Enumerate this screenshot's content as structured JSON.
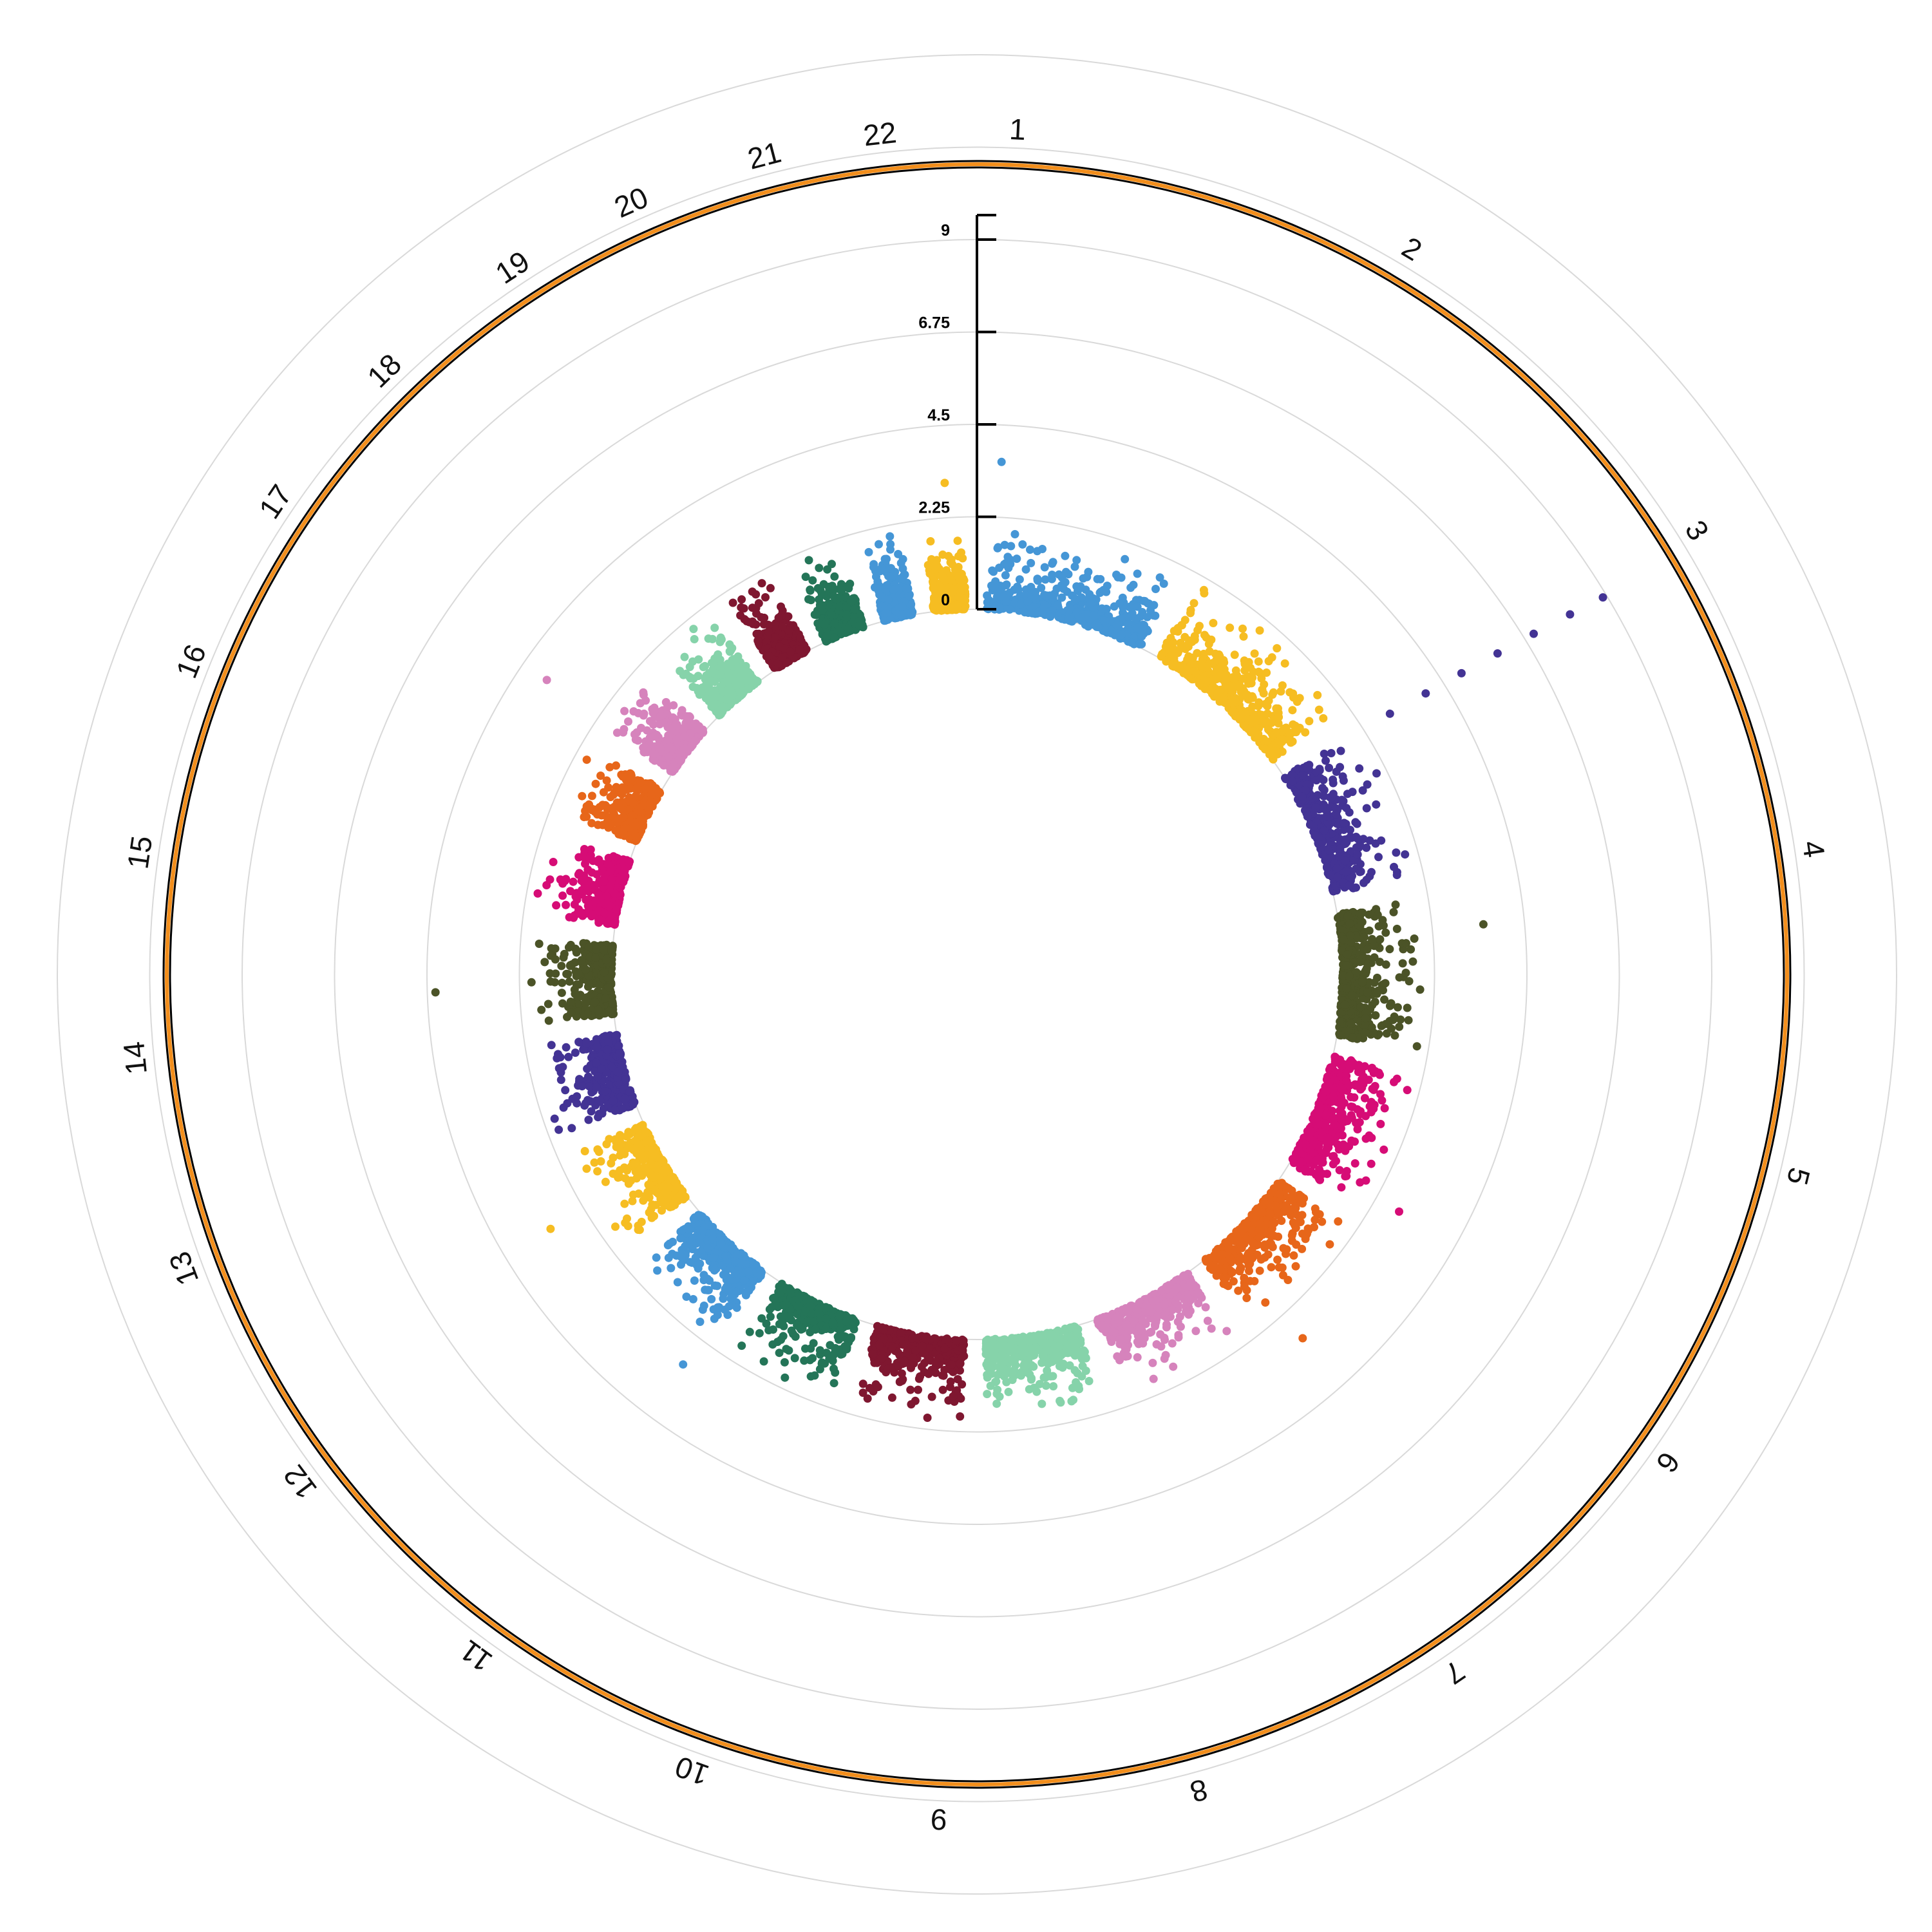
{
  "chart_data": {
    "type": "scatter",
    "layout": "circular-manhattan",
    "title": "",
    "ylabel": "",
    "ylim": [
      0,
      9
    ],
    "yticks": [
      "0",
      "2.25",
      "4.5",
      "6.75",
      "9"
    ],
    "grid": true,
    "chromosomes": [
      "1",
      "2",
      "3",
      "4",
      "5",
      "6",
      "7",
      "8",
      "9",
      "10",
      "11",
      "12",
      "13",
      "14",
      "15",
      "16",
      "17",
      "18",
      "19",
      "20",
      "21",
      "22"
    ],
    "chromosome_sizes": [
      248,
      242,
      198,
      190,
      181,
      171,
      159,
      145,
      138,
      133,
      135,
      133,
      114,
      107,
      102,
      90,
      83,
      80,
      59,
      64,
      47,
      51
    ],
    "colors": [
      "#4596d6",
      "#f6bd22",
      "#433394",
      "#4b5327",
      "#d60c76",
      "#e7661a",
      "#d683bc",
      "#86d3aa",
      "#7f1730",
      "#247558"
    ],
    "outer_ring_colors": {
      "band": "#f28e1c",
      "edge": "#000000"
    },
    "points_per_chromosome_approx": 450,
    "typical_max_value": 2.2,
    "notable_points": [
      {
        "chr": "3",
        "pos_frac": 0.02,
        "value": 3.0
      },
      {
        "chr": "3",
        "pos_frac": 0.03,
        "value": 4.0
      },
      {
        "chr": "3",
        "pos_frac": 0.04,
        "value": 5.0
      },
      {
        "chr": "3",
        "pos_frac": 0.05,
        "value": 6.0
      },
      {
        "chr": "3",
        "pos_frac": 0.06,
        "value": 7.0
      },
      {
        "chr": "3",
        "pos_frac": 0.07,
        "value": 8.0
      },
      {
        "chr": "3",
        "pos_frac": 0.08,
        "value": 8.9
      },
      {
        "chr": "4",
        "pos_frac": 0.2,
        "value": 3.5
      },
      {
        "chr": "5",
        "pos_frac": 0.9,
        "value": 2.9
      },
      {
        "chr": "6",
        "pos_frac": 0.8,
        "value": 3.0
      },
      {
        "chr": "17",
        "pos_frac": 0.1,
        "value": 3.8
      },
      {
        "chr": "14",
        "pos_frac": 0.4,
        "value": 4.3
      },
      {
        "chr": "11",
        "pos_frac": 0.1,
        "value": 3.0
      },
      {
        "chr": "12",
        "pos_frac": 0.5,
        "value": 3.2
      },
      {
        "chr": "1",
        "pos_frac": 0.05,
        "value": 3.6
      },
      {
        "chr": "22",
        "pos_frac": 0.6,
        "value": 3.1
      }
    ]
  }
}
